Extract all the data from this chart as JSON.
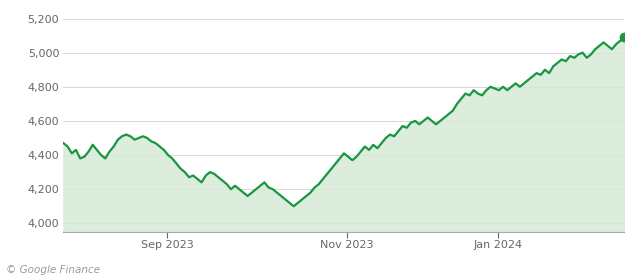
{
  "title": "",
  "ylabel": "",
  "xlabel": "",
  "y_ticks": [
    4000,
    4200,
    4400,
    4600,
    4800,
    5000,
    5200
  ],
  "x_tick_labels": [
    "Sep 2023",
    "Nov 2023",
    "Jan 2024"
  ],
  "x_tick_positions": [
    0.185,
    0.505,
    0.775
  ],
  "ylim": [
    3950,
    5260
  ],
  "line_color": "#1a9641",
  "fill_color_top": "#c8e6c9",
  "fill_color_bottom": "#e8f5e9",
  "dot_color": "#1a9641",
  "background_color": "#ffffff",
  "grid_color": "#d0d0d0",
  "footer_text": "© Google Finance",
  "footer_fontsize": 7.5,
  "line_width": 1.6,
  "sp500_data": [
    4470,
    4450,
    4410,
    4430,
    4380,
    4390,
    4420,
    4460,
    4430,
    4400,
    4380,
    4420,
    4450,
    4490,
    4510,
    4520,
    4510,
    4490,
    4500,
    4510,
    4500,
    4480,
    4470,
    4450,
    4430,
    4400,
    4380,
    4350,
    4320,
    4300,
    4270,
    4280,
    4260,
    4240,
    4280,
    4300,
    4290,
    4270,
    4250,
    4230,
    4200,
    4220,
    4200,
    4180,
    4160,
    4180,
    4200,
    4220,
    4240,
    4210,
    4200,
    4180,
    4160,
    4140,
    4120,
    4100,
    4120,
    4140,
    4160,
    4180,
    4210,
    4230,
    4260,
    4290,
    4320,
    4350,
    4380,
    4410,
    4390,
    4370,
    4390,
    4420,
    4450,
    4430,
    4460,
    4440,
    4470,
    4500,
    4520,
    4510,
    4540,
    4570,
    4560,
    4590,
    4600,
    4580,
    4600,
    4620,
    4600,
    4580,
    4600,
    4620,
    4640,
    4660,
    4700,
    4730,
    4760,
    4750,
    4780,
    4760,
    4750,
    4780,
    4800,
    4790,
    4780,
    4800,
    4780,
    4800,
    4820,
    4800,
    4820,
    4840,
    4860,
    4880,
    4870,
    4900,
    4880,
    4920,
    4940,
    4960,
    4950,
    4980,
    4970,
    4990,
    5000,
    4970,
    4990,
    5020,
    5040,
    5060,
    5040,
    5020,
    5050,
    5070,
    5090
  ]
}
